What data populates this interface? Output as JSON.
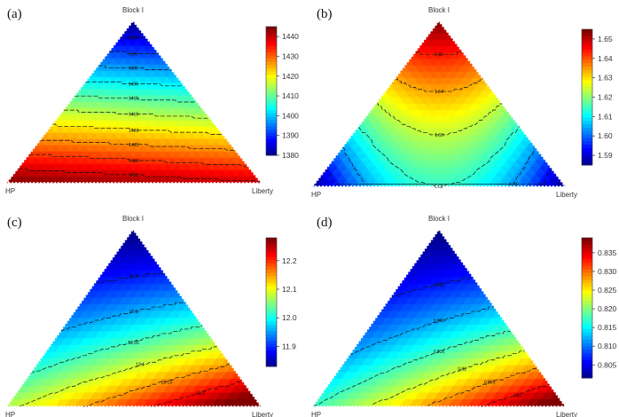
{
  "chart_data": [
    {
      "type": "heatmap",
      "panel_label": "(a)",
      "vertex_labels": {
        "top": "Block I",
        "left": "HP",
        "right": "Liberty"
      },
      "colorbar": {
        "min": 1380,
        "max": 1445,
        "ticks": [
          "1440",
          "1430",
          "1420",
          "1410",
          "1400",
          "1390",
          "1380"
        ]
      },
      "surface_direction": "decreasing toward Block I",
      "contour_labels": [
        "1380",
        "1390",
        "1400",
        "1405",
        "1410",
        "1415",
        "1420",
        "1425",
        "1430",
        "1435"
      ]
    },
    {
      "type": "heatmap",
      "panel_label": "(b)",
      "vertex_labels": {
        "top": "Block I",
        "left": "HP",
        "right": "Liberty"
      },
      "colorbar": {
        "min": 1.585,
        "max": 1.655,
        "ticks": [
          "1.65",
          "1.64",
          "1.63",
          "1.62",
          "1.61",
          "1.60",
          "1.59"
        ]
      },
      "surface_direction": "increasing toward Block I",
      "contour_labels": [
        "1.60",
        "1.61",
        "1.62",
        "1.63",
        "1.64",
        "1.65"
      ]
    },
    {
      "type": "heatmap",
      "panel_label": "(c)",
      "vertex_labels": {
        "top": "Block I",
        "left": "HP",
        "right": "Liberty"
      },
      "colorbar": {
        "min": 11.83,
        "max": 12.28,
        "ticks": [
          "12.2",
          "12.1",
          "12.0",
          "11.9"
        ]
      },
      "surface_direction": "increasing toward HP-Liberty edge near Liberty",
      "contour_labels": [
        "11.9",
        "12.0",
        "12.05",
        "12.1",
        "12.15",
        "12.2"
      ]
    },
    {
      "type": "heatmap",
      "panel_label": "(d)",
      "vertex_labels": {
        "top": "Block I",
        "left": "HP",
        "right": "Liberty"
      },
      "colorbar": {
        "min": 0.8015,
        "max": 0.839,
        "ticks": [
          "0.835",
          "0.830",
          "0.825",
          "0.820",
          "0.815",
          "0.810",
          "0.805"
        ]
      },
      "surface_direction": "increasing toward HP-Liberty edge near Liberty",
      "contour_labels": [
        "0.805",
        "0.810",
        "0.815",
        "0.82",
        "0.825",
        "0.83"
      ]
    }
  ]
}
